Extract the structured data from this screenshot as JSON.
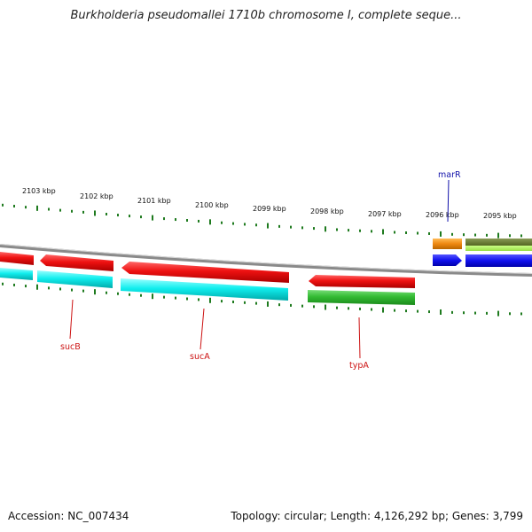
{
  "title": "Burkholderia pseudomallei 1710b chromosome I, complete seque...",
  "footer": {
    "accession": "Accession: NC_007434",
    "summary": "Topology: circular; Length: 4,126,292 bp; Genes: 3,799"
  },
  "colors": {
    "backbone": "#8a8a8a",
    "tick": "#1e7a1e",
    "feature_red": "#ee1111",
    "feature_cyan": "#11eeee",
    "feature_green": "#33bb33",
    "feature_orange": "#ee8811",
    "feature_olive": "#667733",
    "feature_lime": "#aaee55",
    "feature_blue": "#1111ee",
    "label_red": "#cc1111",
    "label_blue": "#1111aa"
  },
  "ticks": [
    "2103 kbp",
    "2102 kbp",
    "2101 kbp",
    "2100 kbp",
    "2099 kbp",
    "2098 kbp",
    "2097 kbp",
    "2096 kbp",
    "2095 kbp"
  ],
  "genes": [
    {
      "name": "sucB",
      "color": "label_red"
    },
    {
      "name": "sucA",
      "color": "label_red"
    },
    {
      "name": "typA",
      "color": "label_red"
    },
    {
      "name": "marR",
      "color": "label_blue"
    }
  ]
}
